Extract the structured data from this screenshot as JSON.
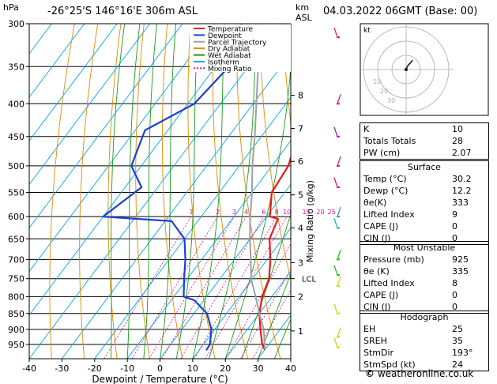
{
  "header": {
    "hpa_label": "hPa",
    "location": "-26°25'S  146°16'E  306m  ASL",
    "km_label": "km",
    "asl_label": "ASL",
    "datetime": "04.03.2022  06GMT  (Base: 00)"
  },
  "hodograph": {
    "kt_label": "kt",
    "ring_labels": [
      "10",
      "20",
      "30"
    ]
  },
  "indices": [
    {
      "label": "K",
      "value": "10"
    },
    {
      "label": "Totals Totals",
      "value": "28"
    },
    {
      "label": "PW (cm)",
      "value": "2.07"
    }
  ],
  "surface": {
    "title": "Surface",
    "rows": [
      {
        "label": "Temp (°C)",
        "value": "30.2"
      },
      {
        "label": "Dewp (°C)",
        "value": "12.2"
      },
      {
        "label": "θe(K)",
        "value": "333"
      },
      {
        "label": "Lifted Index",
        "value": "9"
      },
      {
        "label": "CAPE (J)",
        "value": "0"
      },
      {
        "label": "CIN (J)",
        "value": "0"
      }
    ]
  },
  "most_unstable": {
    "title": "Most Unstable",
    "rows": [
      {
        "label": "Pressure (mb)",
        "value": "925"
      },
      {
        "label": "θe (K)",
        "value": "335"
      },
      {
        "label": "Lifted Index",
        "value": "8"
      },
      {
        "label": "CAPE (J)",
        "value": "0"
      },
      {
        "label": "CIN (J)",
        "value": "0"
      }
    ]
  },
  "hodograph_params": {
    "title": "Hodograph",
    "rows": [
      {
        "label": "EH",
        "value": "25"
      },
      {
        "label": "SREH",
        "value": "35"
      },
      {
        "label": "StmDir",
        "value": "193°"
      },
      {
        "label": "StmSpd (kt)",
        "value": "24"
      }
    ]
  },
  "credit": {
    "copyright": "©",
    "site": " weatheronline.co.uk"
  },
  "chart_data": {
    "type": "line",
    "subtype": "skew-T log-P diagram",
    "xlabel": "Dewpoint / Temperature (°C)",
    "ylabel_right": "Mixing Ratio (g/kg)",
    "xlim": [
      -40,
      40
    ],
    "ylim_hpa": [
      300,
      1000
    ],
    "y_scale": "log",
    "pressure_ticks": [
      300,
      350,
      400,
      450,
      500,
      550,
      600,
      650,
      700,
      750,
      800,
      850,
      900,
      950
    ],
    "temp_ticks": [
      -40,
      -30,
      -20,
      -10,
      0,
      10,
      20,
      30,
      40
    ],
    "km_ticks": [
      {
        "label": "1",
        "p": 905
      },
      {
        "label": "2",
        "p": 800
      },
      {
        "label": "3",
        "p": 708
      },
      {
        "label": "4",
        "p": 625
      },
      {
        "label": "5",
        "p": 555
      },
      {
        "label": "6",
        "p": 492
      },
      {
        "label": "7",
        "p": 437
      },
      {
        "label": "8",
        "p": 388
      }
    ],
    "lcl": {
      "label": "LCL",
      "p": 750
    },
    "mixing_ratio_labels": [
      "1",
      "2",
      "3",
      "4",
      "6",
      "8",
      "10",
      "15",
      "20",
      "25"
    ],
    "mixing_ratios": [
      1,
      2,
      3,
      4,
      6,
      8,
      10,
      15,
      20,
      25
    ],
    "legend": {
      "placement": "top-left",
      "entries": [
        {
          "name": "Temperature",
          "color": "#e8181d"
        },
        {
          "name": "Dewpoint",
          "color": "#1b3fd6"
        },
        {
          "name": "Parcel Trajectory",
          "color": "#a0a0a0"
        },
        {
          "name": "Dry Adiabat",
          "color": "#e08a00"
        },
        {
          "name": "Wet Adiabat",
          "color": "#1a9a1a"
        },
        {
          "name": "Isotherm",
          "color": "#00a8e8"
        },
        {
          "name": "Mixing Ratio",
          "color": "#d0188a"
        }
      ]
    },
    "series": [
      {
        "name": "Temperature",
        "color": "#e8181d",
        "points": [
          [
            300,
            -31
          ],
          [
            350,
            -24
          ],
          [
            400,
            -15
          ],
          [
            450,
            -9
          ],
          [
            500,
            -5
          ],
          [
            550,
            -4
          ],
          [
            600,
            1
          ],
          [
            605,
            4
          ],
          [
            650,
            6
          ],
          [
            700,
            11
          ],
          [
            750,
            15
          ],
          [
            800,
            17
          ],
          [
            850,
            20
          ],
          [
            900,
            24
          ],
          [
            950,
            28
          ],
          [
            970,
            30.2
          ]
        ]
      },
      {
        "name": "Dewpoint",
        "color": "#1b3fd6",
        "points": [
          [
            300,
            -52
          ],
          [
            330,
            -45
          ],
          [
            400,
            -48
          ],
          [
            440,
            -57
          ],
          [
            500,
            -53
          ],
          [
            540,
            -45
          ],
          [
            600,
            -50
          ],
          [
            610,
            -28
          ],
          [
            650,
            -20
          ],
          [
            700,
            -15
          ],
          [
            750,
            -11
          ],
          [
            800,
            -7
          ],
          [
            810,
            -3
          ],
          [
            850,
            4
          ],
          [
            900,
            9
          ],
          [
            950,
            12
          ],
          [
            970,
            12.2
          ]
        ]
      },
      {
        "name": "Parcel Trajectory",
        "color": "#a0a0a0",
        "points": [
          [
            300,
            -45
          ],
          [
            350,
            -37
          ],
          [
            400,
            -29
          ],
          [
            450,
            -22
          ],
          [
            500,
            -16
          ],
          [
            550,
            -10
          ],
          [
            600,
            -5
          ],
          [
            650,
            0
          ],
          [
            700,
            5
          ],
          [
            750,
            9.5
          ],
          [
            800,
            15
          ],
          [
            850,
            20
          ],
          [
            900,
            25
          ],
          [
            970,
            30.2
          ]
        ]
      }
    ],
    "winds": [
      {
        "p": 315,
        "color": "#e0187e"
      },
      {
        "p": 400,
        "color": "#e0187e"
      },
      {
        "p": 450,
        "color": "#9b20b0"
      },
      {
        "p": 500,
        "color": "#e0187e"
      },
      {
        "p": 540,
        "color": "#e0187e"
      },
      {
        "p": 600,
        "color": "#3a8be0"
      },
      {
        "p": 625,
        "color": "#20b0c0"
      },
      {
        "p": 700,
        "color": "#20c020"
      },
      {
        "p": 740,
        "color": "#20c020"
      },
      {
        "p": 770,
        "color": "#d4d400"
      },
      {
        "p": 850,
        "color": "#d4d400"
      },
      {
        "p": 925,
        "color": "#d4d400"
      },
      {
        "p": 960,
        "color": "#d4d400"
      }
    ],
    "hodograph_trace": [
      [
        0,
        0
      ],
      [
        1,
        3
      ],
      [
        3,
        6
      ],
      [
        6,
        9
      ],
      [
        8,
        12
      ]
    ]
  }
}
